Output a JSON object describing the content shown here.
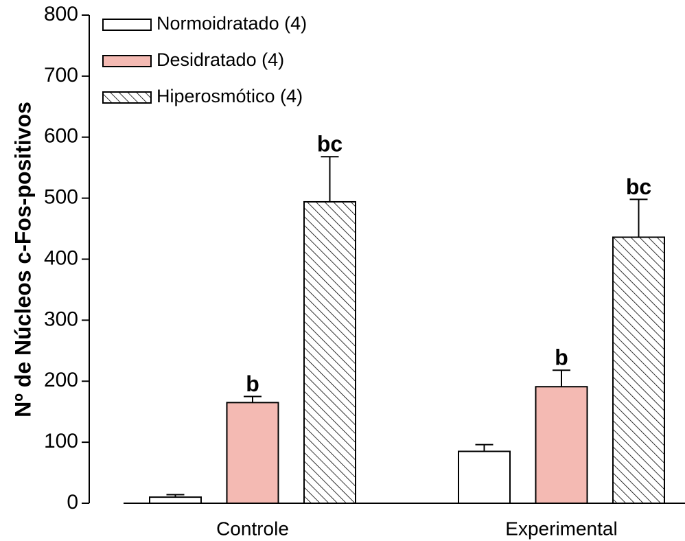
{
  "chart_data": {
    "type": "bar",
    "y_label": "Nº de Núcleos c-Fos-positivos",
    "categories": [
      "Controle",
      "Experimental"
    ],
    "series": [
      {
        "name": "Normoidratado (4)",
        "color": "#ffffff",
        "hatch": false,
        "values": [
          10,
          85
        ],
        "errors": [
          4,
          11
        ],
        "annotations": [
          null,
          null
        ]
      },
      {
        "name": "Desidratado (4)",
        "color": "#f4bab3",
        "hatch": false,
        "values": [
          165,
          191
        ],
        "errors": [
          10,
          27
        ],
        "annotations": [
          "b",
          "b"
        ]
      },
      {
        "name": "Hiperosmótico (4)",
        "color": "#ffffff",
        "hatch": true,
        "values": [
          494,
          436
        ],
        "errors": [
          74,
          62
        ],
        "annotations": [
          "bc",
          "bc"
        ]
      }
    ],
    "ylim": [
      0,
      800
    ],
    "yticks": [
      0,
      100,
      200,
      300,
      400,
      500,
      600,
      700,
      800
    ],
    "grid": false,
    "legend": "top-left"
  }
}
